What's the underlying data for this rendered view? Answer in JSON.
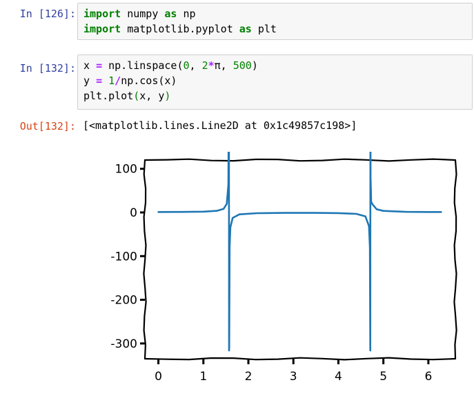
{
  "cells": [
    {
      "prompt": "In [126]:",
      "lines": [
        [
          {
            "t": "import",
            "c": "kw"
          },
          {
            "t": " numpy ",
            "c": ""
          },
          {
            "t": "as",
            "c": "kw"
          },
          {
            "t": " np",
            "c": ""
          }
        ],
        [
          {
            "t": "import",
            "c": "kw"
          },
          {
            "t": " matplotlib.pyplot ",
            "c": ""
          },
          {
            "t": "as",
            "c": "kw"
          },
          {
            "t": " plt",
            "c": ""
          }
        ]
      ]
    },
    {
      "prompt": "In [132]:",
      "lines": [
        [
          {
            "t": "x ",
            "c": ""
          },
          {
            "t": "=",
            "c": "op"
          },
          {
            "t": " np.linspace(",
            "c": ""
          },
          {
            "t": "0",
            "c": "num"
          },
          {
            "t": ", ",
            "c": ""
          },
          {
            "t": "2",
            "c": "num"
          },
          {
            "t": "*",
            "c": "op"
          },
          {
            "t": "π, ",
            "c": ""
          },
          {
            "t": "500",
            "c": "num"
          },
          {
            "t": ")",
            "c": ""
          }
        ],
        [
          {
            "t": "y ",
            "c": ""
          },
          {
            "t": "=",
            "c": "op"
          },
          {
            "t": " ",
            "c": ""
          },
          {
            "t": "1",
            "c": "num"
          },
          {
            "t": "/",
            "c": "op"
          },
          {
            "t": "np.cos(x)",
            "c": ""
          }
        ],
        [
          {
            "t": "plt.plot",
            "c": ""
          },
          {
            "t": "(",
            "c": "num"
          },
          {
            "t": "x, y",
            "c": ""
          },
          {
            "t": ")",
            "c": "num"
          }
        ]
      ]
    }
  ],
  "output": {
    "prompt": "Out[132]:",
    "text": "[<matplotlib.lines.Line2D at 0x1c49857c198>]"
  },
  "chart_data": {
    "type": "line",
    "title": "",
    "xlabel": "",
    "ylabel": "",
    "style": "xkcd",
    "xlim": [
      -0.3,
      6.6
    ],
    "ylim": [
      -335,
      120
    ],
    "xticks": [
      0,
      1,
      2,
      3,
      4,
      5,
      6
    ],
    "yticks": [
      100,
      0,
      -100,
      -200,
      -300
    ],
    "line_color": "#1f77b4",
    "series": [
      {
        "x": [
          0,
          0.5,
          1.0,
          1.3,
          1.45,
          1.52,
          1.555,
          1.5675,
          1.5705,
          1.5741,
          1.5835,
          1.6,
          1.65,
          1.8,
          2.2,
          2.8,
          3.1416,
          3.5,
          4.0,
          4.4,
          4.6,
          4.68,
          4.7,
          4.7096,
          4.7125,
          4.7155,
          4.73,
          4.76,
          4.85,
          5.0,
          5.5,
          6.0,
          6.2832
        ],
        "y": [
          1,
          1.14,
          1.85,
          3.74,
          8.35,
          19.9,
          63.7,
          315,
          -316,
          -310,
          -79.5,
          -34.2,
          -12.6,
          -4.38,
          -1.7,
          -1.06,
          -1.0,
          -1.07,
          -1.53,
          -3.27,
          -8.97,
          -31.3,
          -79.5,
          -316,
          315,
          79.5,
          23.9,
          18.4,
          7.3,
          3.53,
          1.41,
          1.04,
          1
        ]
      }
    ]
  }
}
